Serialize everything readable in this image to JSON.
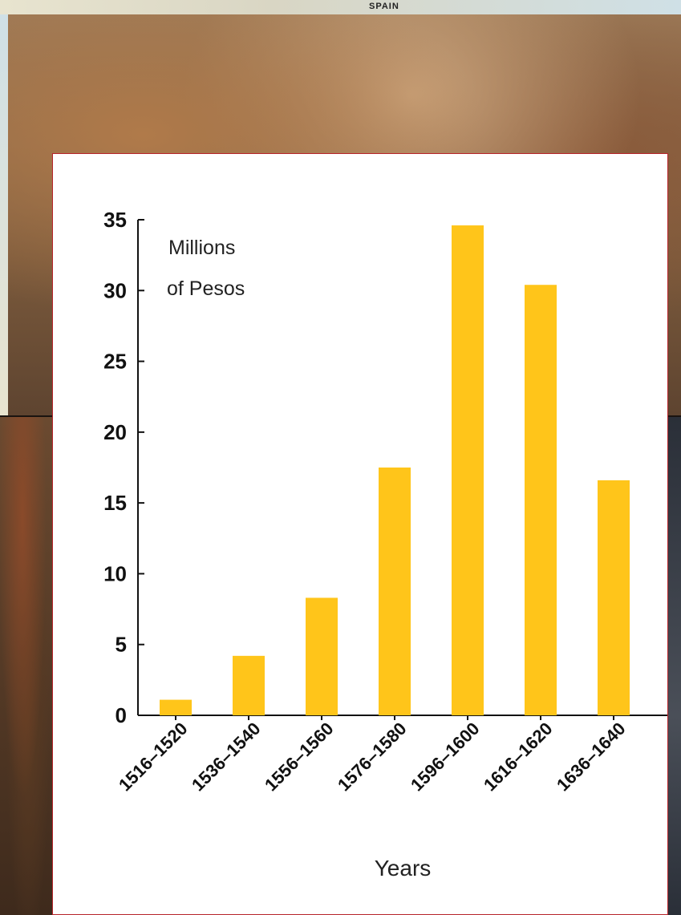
{
  "background": {
    "map_label": "SPAIN"
  },
  "chart_data": {
    "type": "bar",
    "categories": [
      "1516–1520",
      "1536–1540",
      "1556–1560",
      "1576–1580",
      "1596–1600",
      "1616–1620",
      "1636–1640"
    ],
    "values": [
      1.1,
      4.2,
      8.3,
      17.5,
      34.6,
      30.4,
      16.6
    ],
    "ylabel_lines": [
      "Millions",
      "of Pesos"
    ],
    "xlabel": "Years",
    "ylim": [
      0,
      35
    ],
    "yticks": [
      0,
      5,
      10,
      15,
      20,
      25,
      30,
      35
    ],
    "grid": false,
    "bar_color": "#FFC51A",
    "axis_color": "#111111"
  }
}
